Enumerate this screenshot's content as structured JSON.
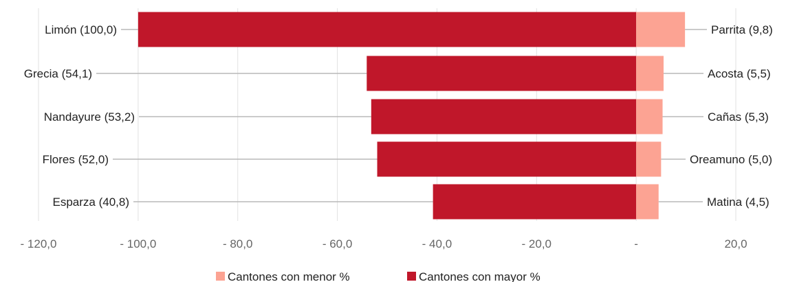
{
  "chart_data": {
    "type": "bar",
    "orientation": "horizontal",
    "stacked": "diverging",
    "x_ticks": [
      "- 120,0",
      "- 100,0",
      "- 80,0",
      "- 60,0",
      "- 40,0",
      "- 20,0",
      "-",
      "20,0"
    ],
    "xlim": [
      -120,
      20
    ],
    "grid": true,
    "legend_position": "bottom",
    "series": [
      {
        "name": "Cantones con mayor %",
        "color": "#C0172A",
        "categories": [
          "Limón (100,0)",
          "Grecia (54,1)",
          "Nandayure (53,2)",
          "Flores (52,0)",
          "Esparza (40,8)"
        ],
        "values": [
          -100.0,
          -54.1,
          -53.2,
          -52.0,
          -40.8
        ]
      },
      {
        "name": "Cantones con menor %",
        "color": "#FCA393",
        "categories": [
          "Parrita (9,8)",
          "Acosta (5,5)",
          "Cañas (5,3)",
          "Oreamuno (5,0)",
          "Matina (4,5)"
        ],
        "values": [
          9.8,
          5.5,
          5.3,
          5.0,
          4.5
        ]
      }
    ],
    "legend": [
      "Cantones con menor %",
      "Cantones con mayor %"
    ]
  }
}
